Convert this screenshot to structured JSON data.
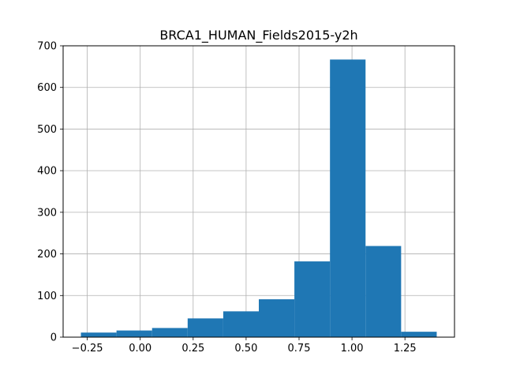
{
  "chart_data": {
    "type": "bar",
    "title": "BRCA1_HUMAN_Fields2015-y2h",
    "xlabel": "",
    "ylabel": "",
    "bins": [
      {
        "x0": -0.28,
        "x1": -0.112,
        "count": 11
      },
      {
        "x0": -0.112,
        "x1": 0.056,
        "count": 16
      },
      {
        "x0": 0.056,
        "x1": 0.224,
        "count": 22
      },
      {
        "x0": 0.224,
        "x1": 0.392,
        "count": 45
      },
      {
        "x0": 0.392,
        "x1": 0.56,
        "count": 62
      },
      {
        "x0": 0.56,
        "x1": 0.728,
        "count": 91
      },
      {
        "x0": 0.728,
        "x1": 0.896,
        "count": 182
      },
      {
        "x0": 0.896,
        "x1": 1.064,
        "count": 667
      },
      {
        "x0": 1.064,
        "x1": 1.232,
        "count": 219
      },
      {
        "x0": 1.232,
        "x1": 1.4,
        "count": 13
      }
    ],
    "xlim": [
      -0.364,
      1.484
    ],
    "ylim": [
      0,
      700
    ],
    "xticks": [
      -0.25,
      0.0,
      0.25,
      0.5,
      0.75,
      1.0,
      1.25
    ],
    "xtick_labels": [
      "−0.25",
      "0.00",
      "0.25",
      "0.50",
      "0.75",
      "1.00",
      "1.25"
    ],
    "yticks": [
      0,
      100,
      200,
      300,
      400,
      500,
      600,
      700
    ],
    "ytick_labels": [
      "0",
      "100",
      "200",
      "300",
      "400",
      "500",
      "600",
      "700"
    ],
    "grid": true,
    "bar_color": "#1f77b4"
  }
}
